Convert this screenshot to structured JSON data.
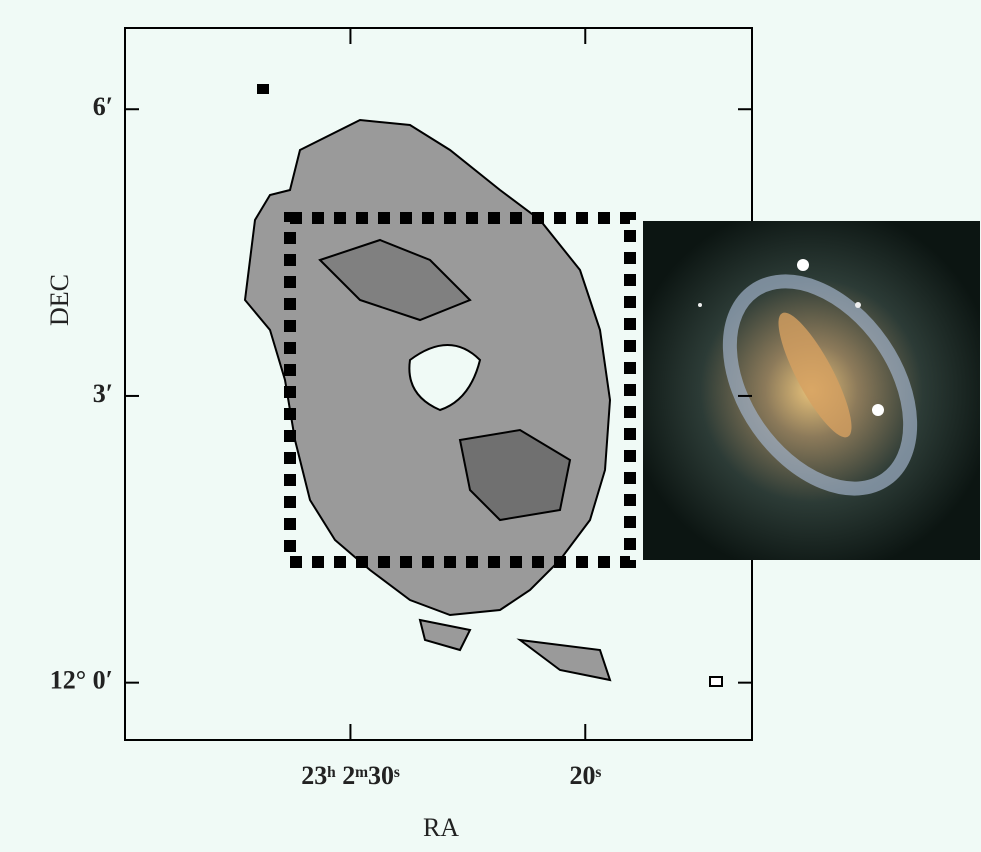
{
  "chart_data": {
    "type": "map",
    "xlabel": "RA",
    "ylabel": "DEC",
    "xlim": [
      39.6,
      12.9
    ],
    "xticks": [
      {
        "value": 30,
        "label": "23ʰ 2ᵐ30ˢ"
      },
      {
        "value": 20,
        "label": "20ˢ"
      }
    ],
    "ylim": [
      -0.6,
      6.85
    ],
    "yticks": [
      {
        "value": 0,
        "label": "12° 0′"
      },
      {
        "value": 3,
        "label": "3′"
      },
      {
        "value": 6,
        "label": "6′"
      }
    ]
  }
}
